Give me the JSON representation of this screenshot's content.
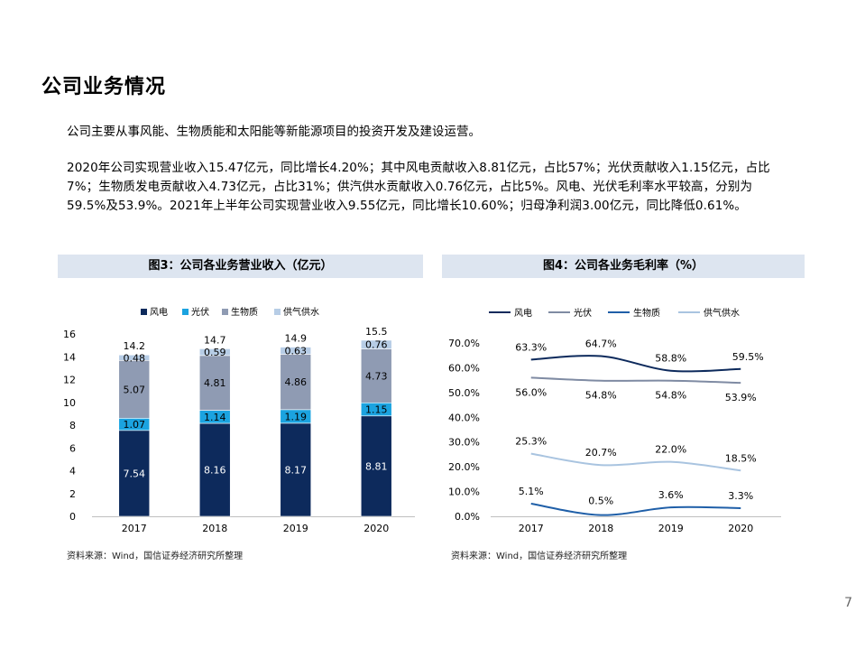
{
  "page": {
    "title": "公司业务情况",
    "intro": "公司主要从事风能、生物质能和太阳能等新能源项目的投资开发及建设运营。",
    "detail": "2020年公司实现营业收入15.47亿元，同比增长4.20%；其中风电贡献收入8.81亿元，占比57%；光伏贡献收入1.15亿元，占比7%；生物质发电贡献收入4.73亿元，占比31%；供汽供水贡献收入0.76亿元，占比5%。风电、光伏毛利率水平较高，分别为59.5%及53.9%。2021年上半年公司实现营业收入9.55亿元，同比增长10.60%；归母净利润3.00亿元，同比降低0.61%。",
    "page_number": "7"
  },
  "figures": {
    "fig3": {
      "title": "图3：公司各业务营业收入（亿元）",
      "source": "资料来源：Wind，国信证券经济研究所整理"
    },
    "fig4": {
      "title": "图4：公司各业务毛利率（%）",
      "source": "资料来源：Wind，国信证券经济研究所整理"
    }
  },
  "chart_data": [
    {
      "type": "bar",
      "stacked": true,
      "categories": [
        "2017",
        "2018",
        "2019",
        "2020"
      ],
      "series": [
        {
          "name": "风电",
          "values": [
            7.54,
            8.16,
            8.17,
            8.81
          ],
          "color": "#0d2a5c"
        },
        {
          "name": "光伏",
          "values": [
            1.07,
            1.14,
            1.19,
            1.15
          ],
          "color": "#1ba3e0"
        },
        {
          "name": "生物质",
          "values": [
            5.07,
            4.81,
            4.86,
            4.73
          ],
          "color": "#8f9bb3"
        },
        {
          "name": "供气供水",
          "values": [
            0.48,
            0.59,
            0.63,
            0.76
          ],
          "color": "#b7cde6"
        }
      ],
      "totals": [
        "14.2",
        "14.7",
        "14.9",
        "15.5"
      ],
      "ylim": [
        0,
        16
      ],
      "yticks": [
        "0",
        "2",
        "4",
        "6",
        "8",
        "10",
        "12",
        "14",
        "16"
      ],
      "legend": "top",
      "grid": false
    },
    {
      "type": "line",
      "categories": [
        "2017",
        "2018",
        "2019",
        "2020"
      ],
      "series": [
        {
          "name": "风电",
          "values": [
            63.3,
            64.7,
            58.8,
            59.5
          ],
          "labels": [
            "63.3%",
            "64.7%",
            "58.8%",
            "59.5%"
          ],
          "color": "#0d2a5c"
        },
        {
          "name": "光伏",
          "values": [
            56.0,
            54.8,
            54.8,
            53.9
          ],
          "labels": [
            "56.0%",
            "54.8%",
            "54.8%",
            "53.9%"
          ],
          "color": "#7f8ba3"
        },
        {
          "name": "生物质",
          "values": [
            5.1,
            0.5,
            3.6,
            3.3
          ],
          "labels": [
            "5.1%",
            "0.5%",
            "3.6%",
            "3.3%"
          ],
          "color": "#1f5fa8"
        },
        {
          "name": "供气供水",
          "values": [
            25.3,
            20.7,
            22.0,
            18.5
          ],
          "labels": [
            "25.3%",
            "20.7%",
            "22.0%",
            "18.5%"
          ],
          "color": "#a9c4e0"
        }
      ],
      "ylim": [
        0,
        70
      ],
      "yticks": [
        "0.0%",
        "10.0%",
        "20.0%",
        "30.0%",
        "40.0%",
        "50.0%",
        "60.0%",
        "70.0%"
      ],
      "legend": "top",
      "grid": false
    }
  ]
}
